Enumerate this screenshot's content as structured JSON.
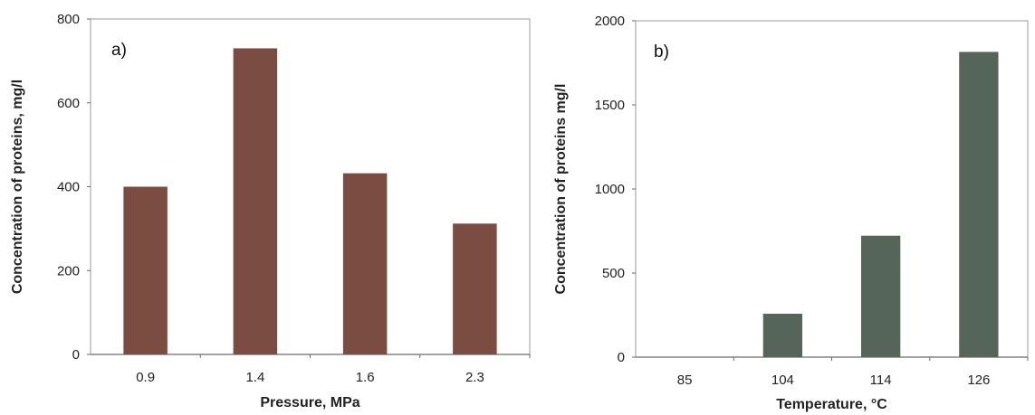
{
  "chart_data": [
    {
      "type": "bar",
      "panel_label": "a)",
      "categories": [
        "0.9",
        "1.4",
        "1.6",
        "2.3"
      ],
      "values": [
        400,
        730,
        432,
        312
      ],
      "xlabel": "Pressure, MPa",
      "ylabel": "Concentration of proteins, mg/l",
      "ylim": [
        0,
        800
      ],
      "yticks": [
        "0",
        "200",
        "400",
        "600",
        "800"
      ],
      "bar_color": "#7a4c42",
      "grid": false
    },
    {
      "type": "bar",
      "panel_label": "b)",
      "categories": [
        "85",
        "104",
        "114",
        "126"
      ],
      "values": [
        0,
        258,
        722,
        1815
      ],
      "xlabel": "Temperature, °C",
      "ylabel": "Concentration of proteins mg/l",
      "ylim": [
        0,
        2000
      ],
      "yticks": [
        "0",
        "500",
        "1000",
        "1500",
        "2000"
      ],
      "bar_color": "#55655a",
      "grid": false
    }
  ]
}
